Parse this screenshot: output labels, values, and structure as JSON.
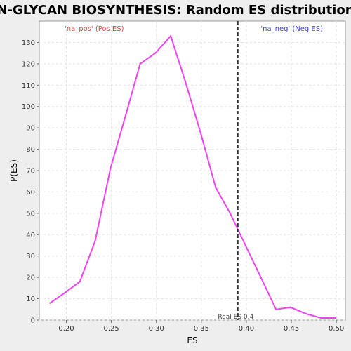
{
  "chart_data": {
    "type": "line",
    "title": "N-GLYCAN BIOSYNTHESIS: Random ES distribution",
    "xlabel": "ES",
    "ylabel": "P(ES)",
    "xlim": [
      0.17,
      0.51
    ],
    "ylim": [
      0,
      140
    ],
    "x_ticks": [
      0.2,
      0.25,
      0.3,
      0.35,
      0.4,
      0.45,
      0.5
    ],
    "x_tick_labels": [
      "0.20",
      "0.25",
      "0.30",
      "0.35",
      "0.40",
      "0.45",
      "0.50"
    ],
    "y_ticks": [
      0,
      10,
      20,
      30,
      40,
      50,
      60,
      70,
      80,
      90,
      100,
      110,
      120,
      130
    ],
    "y_tick_labels": [
      "0",
      "10",
      "20",
      "30",
      "40",
      "50",
      "60",
      "70",
      "80",
      "90",
      "100",
      "110",
      "120",
      "130"
    ],
    "grid": true,
    "series": [
      {
        "color": "#ee44ee",
        "x": [
          0.182,
          0.199,
          0.215,
          0.232,
          0.249,
          0.266,
          0.282,
          0.299,
          0.316,
          0.332,
          0.349,
          0.366,
          0.382,
          0.399,
          0.416,
          0.433,
          0.449,
          0.466,
          0.483,
          0.499
        ],
        "y": [
          8,
          13,
          18,
          37,
          71,
          96,
          120,
          125,
          133,
          112,
          88,
          62,
          50,
          35,
          20,
          5,
          6,
          3,
          1,
          1
        ]
      }
    ],
    "legend": {
      "pos_label": "'na_pos' (Pos ES)",
      "neg_label": "'na_neg' (Neg ES)",
      "pos_color": "#e04040",
      "neg_color": "#4444dd"
    },
    "real_es": {
      "value": 0.4,
      "x": 0.3905,
      "label": "Real ES 0.4"
    }
  }
}
